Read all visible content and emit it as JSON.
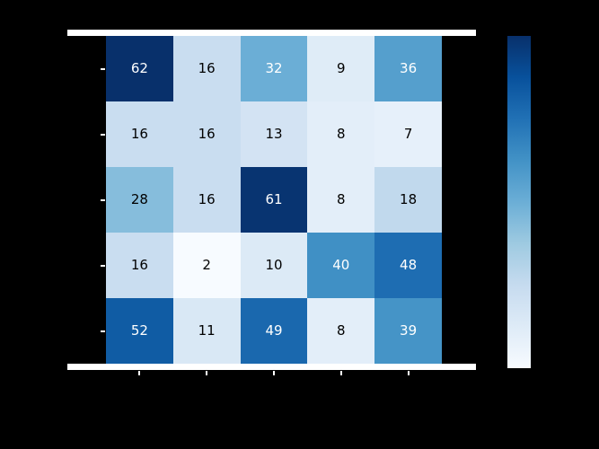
{
  "figure": {
    "background_color": "#000000",
    "axes_edge_color": "#ffffff"
  },
  "chart_data": {
    "type": "heatmap",
    "rows": 5,
    "cols": 5,
    "values": [
      [
        62,
        16,
        32,
        9,
        36
      ],
      [
        16,
        16,
        13,
        8,
        7
      ],
      [
        28,
        16,
        61,
        8,
        18
      ],
      [
        16,
        2,
        10,
        40,
        48
      ],
      [
        52,
        11,
        49,
        8,
        39
      ]
    ],
    "colormap": "Blues",
    "vmin": 2,
    "vmax": 62,
    "cell_colors": [
      [
        "#08306b",
        "#c9ddf0",
        "#6baed6",
        "#dfecf7",
        "#559fcd"
      ],
      [
        "#c9ddf0",
        "#c9ddf0",
        "#d3e3f3",
        "#e3eef9",
        "#e6f0fa"
      ],
      [
        "#86bddc",
        "#c9ddf0",
        "#083471",
        "#e3eef9",
        "#c1d9ed"
      ],
      [
        "#c9ddf0",
        "#f7fbff",
        "#dceaf6",
        "#4090c5",
        "#1e6db2"
      ],
      [
        "#105ca4",
        "#d9e8f5",
        "#1a68ae",
        "#e3eef9",
        "#4594c7"
      ]
    ],
    "text_colors": [
      [
        "#ffffff",
        "#000000",
        "#ffffff",
        "#000000",
        "#ffffff"
      ],
      [
        "#000000",
        "#000000",
        "#000000",
        "#000000",
        "#000000"
      ],
      [
        "#000000",
        "#000000",
        "#ffffff",
        "#000000",
        "#000000"
      ],
      [
        "#000000",
        "#000000",
        "#000000",
        "#ffffff",
        "#ffffff"
      ],
      [
        "#ffffff",
        "#000000",
        "#ffffff",
        "#000000",
        "#ffffff"
      ]
    ],
    "colorbar": {
      "position": "right",
      "gradient_stops_top_to_bottom": [
        "#08306b",
        "#08519c",
        "#2171b5",
        "#4292c6",
        "#6baed6",
        "#9ecae1",
        "#c6dbef",
        "#deebf7",
        "#f7fbff"
      ]
    }
  }
}
